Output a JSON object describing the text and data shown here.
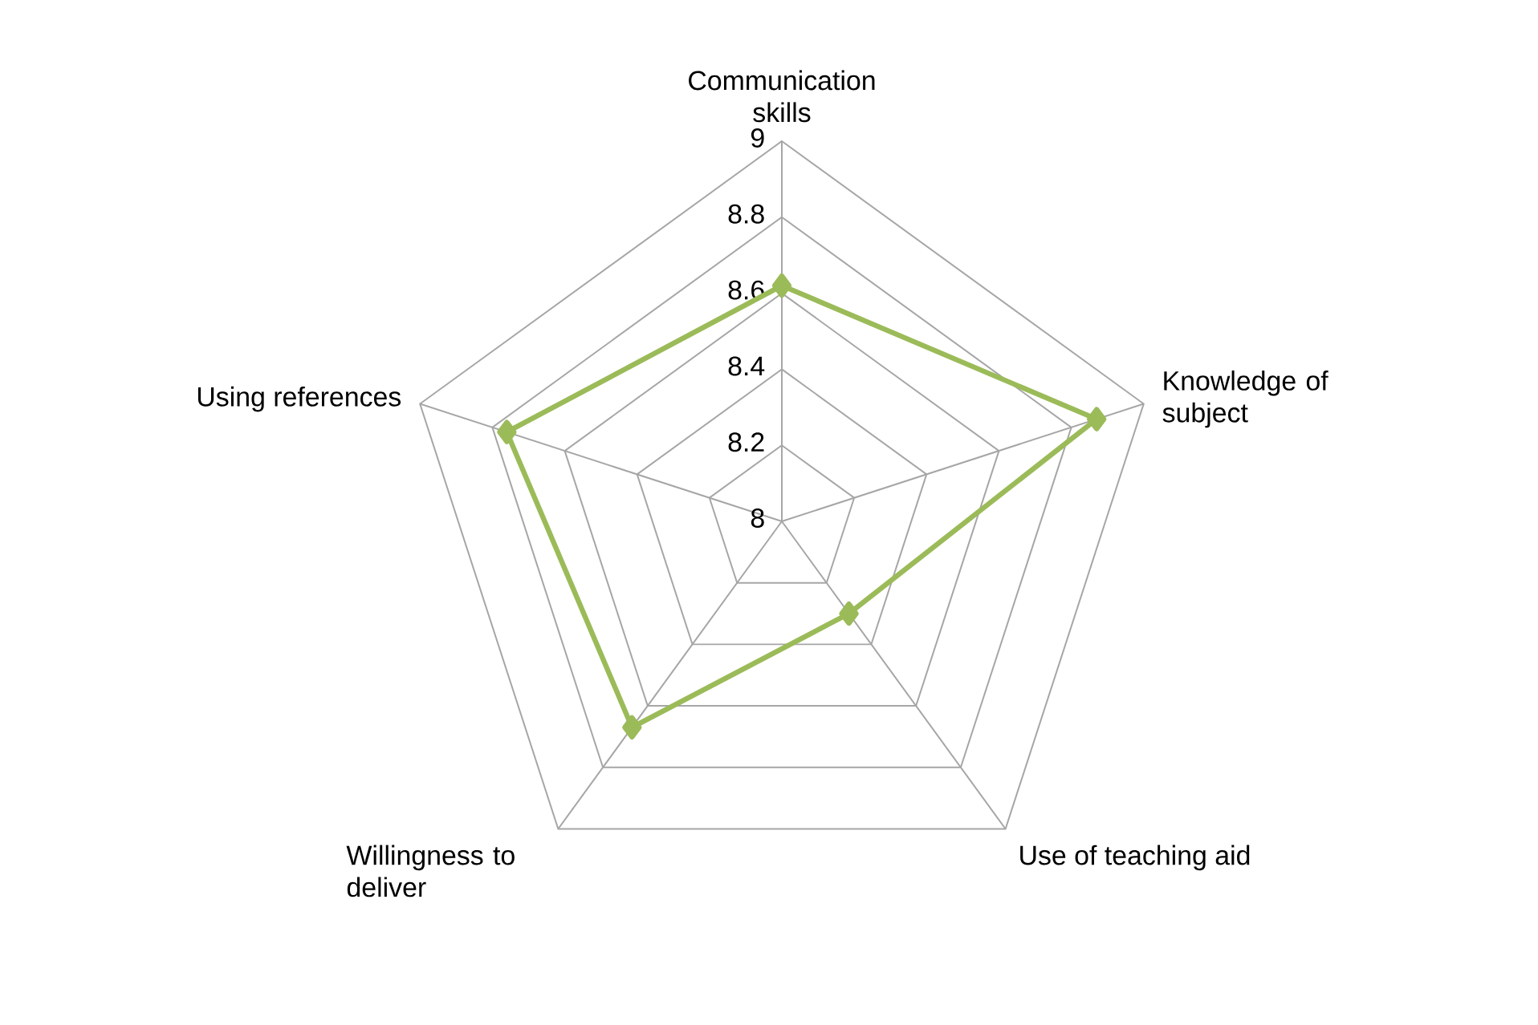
{
  "chart_data": {
    "type": "radar",
    "categories": [
      "Communication skills",
      "Knowledge of subject",
      "Use of teaching aid",
      "Willingness to deliver",
      "Using references"
    ],
    "series": [
      {
        "color": "#9bbb59",
        "values": [
          8.62,
          8.87,
          8.3,
          8.67,
          8.76
        ]
      }
    ],
    "ylim": [
      8,
      9
    ],
    "yticks": [
      8,
      8.2,
      8.4,
      8.6,
      8.8,
      9
    ],
    "marker": "diamond",
    "grid": true
  }
}
